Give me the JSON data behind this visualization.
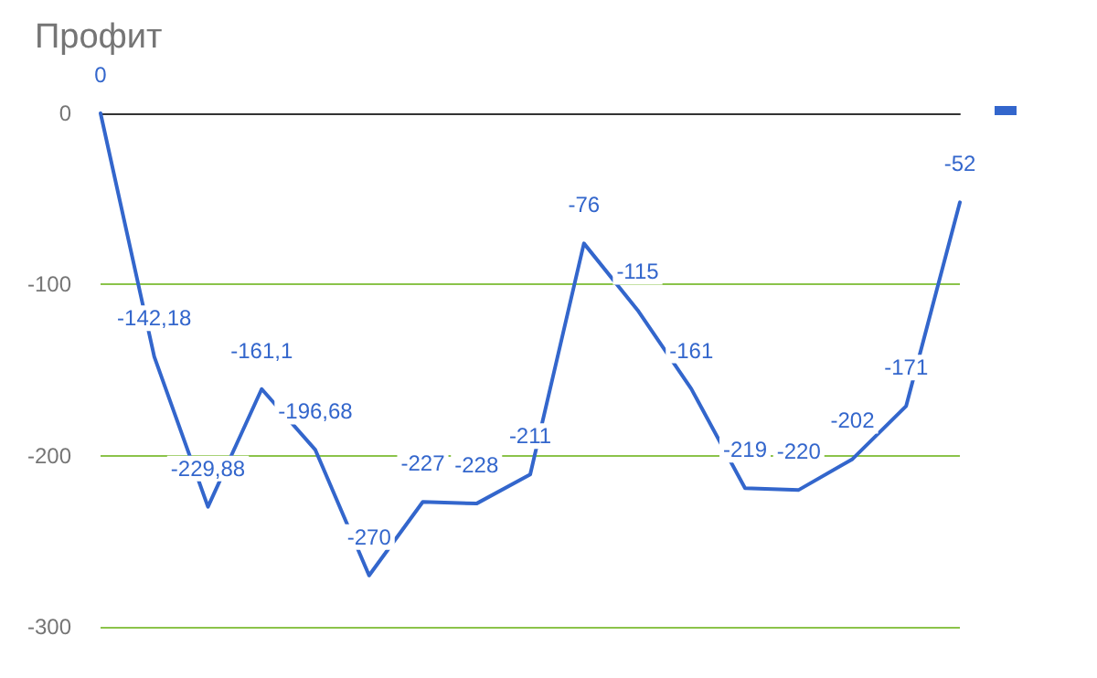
{
  "chart_data": {
    "type": "line",
    "title": "Профит",
    "categories": [
      null,
      null,
      null,
      null,
      null,
      null,
      null,
      null,
      null,
      null,
      null,
      null,
      null,
      null,
      null,
      null,
      null
    ],
    "series": [
      {
        "color": "#3366cc",
        "values": [
          0,
          -142.18,
          -229.88,
          -161.1,
          -196.68,
          -270,
          -227,
          -228,
          -211,
          -76,
          -115,
          -161,
          -219,
          -220,
          -202,
          -171,
          -52
        ],
        "value_labels": [
          "0",
          "-142,18",
          "-229,88",
          "-161,1",
          "-196,68",
          "-270",
          "-227",
          "-228",
          "-211",
          "-76",
          "-115",
          "-161",
          "-219",
          "-220",
          "-202",
          "-171",
          "-52"
        ]
      }
    ],
    "ylim": [
      -300,
      0
    ],
    "yticks": [
      -300,
      -200,
      -100,
      0
    ],
    "grid": "y",
    "marker": "none",
    "line_style": "solid",
    "tick_labels": "y"
  }
}
